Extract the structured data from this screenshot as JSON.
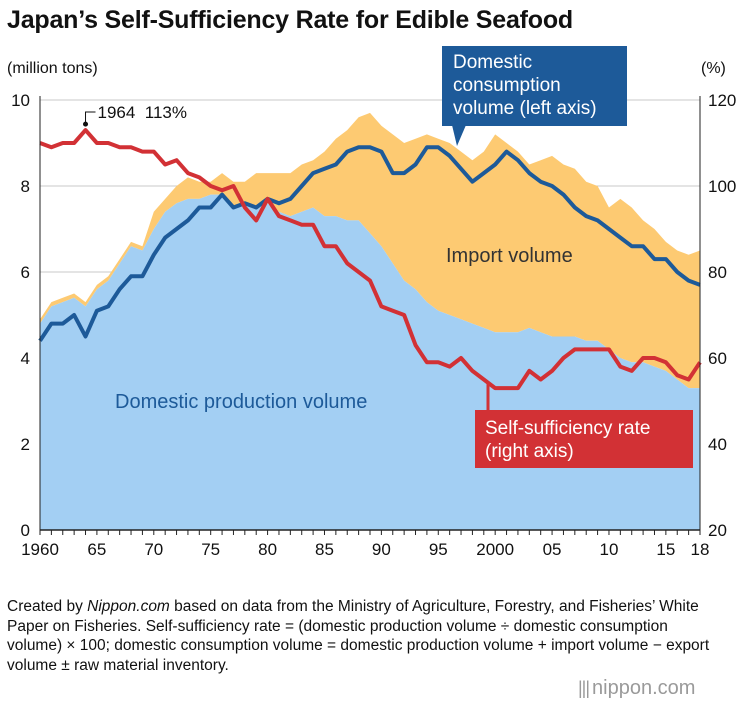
{
  "title": "Japan’s Self-Sufficiency Rate for Edible Seafood",
  "left_unit": "(million tons)",
  "right_unit": "(%)",
  "footnote": {
    "prefix": "Created by ",
    "source": "Nippon.com",
    "body": " based on data from the Ministry of Agriculture, Forestry, and Fisheries’ White Paper on Fisheries. Self-sufficiency rate = (domestic production volume ÷ domestic consumption volume) × 100; domestic consumption volume = domestic production volume + import volume − export volume ± raw material inventory."
  },
  "brand": "nippon.com",
  "colors": {
    "production": "#a3cff3",
    "imports": "#fdca72",
    "consumption": "#1d5a99",
    "rate": "#d23135",
    "grid": "#c8c8c8",
    "axis": "#222222"
  },
  "chart_data": {
    "type": "area",
    "x": [
      1960,
      1961,
      1962,
      1963,
      1964,
      1965,
      1966,
      1967,
      1968,
      1969,
      1970,
      1971,
      1972,
      1973,
      1974,
      1975,
      1976,
      1977,
      1978,
      1979,
      1980,
      1981,
      1982,
      1983,
      1984,
      1985,
      1986,
      1987,
      1988,
      1989,
      1990,
      1991,
      1992,
      1993,
      1994,
      1995,
      1996,
      1997,
      1998,
      1999,
      2000,
      2001,
      2002,
      2003,
      2004,
      2005,
      2006,
      2007,
      2008,
      2009,
      2010,
      2011,
      2012,
      2013,
      2014,
      2015,
      2016,
      2017,
      2018
    ],
    "x_tick_labels": [
      {
        "x": 1960,
        "label": "1960"
      },
      {
        "x": 1965,
        "label": "65"
      },
      {
        "x": 1970,
        "label": "70"
      },
      {
        "x": 1975,
        "label": "75"
      },
      {
        "x": 1980,
        "label": "80"
      },
      {
        "x": 1985,
        "label": "85"
      },
      {
        "x": 1990,
        "label": "90"
      },
      {
        "x": 1995,
        "label": "95"
      },
      {
        "x": 2000,
        "label": "2000"
      },
      {
        "x": 2005,
        "label": "05"
      },
      {
        "x": 2010,
        "label": "10"
      },
      {
        "x": 2015,
        "label": "15"
      },
      {
        "x": 2018,
        "label": "18"
      }
    ],
    "left_axis": {
      "label": "(million tons)",
      "range": [
        0,
        10
      ],
      "ticks": [
        0,
        2,
        4,
        6,
        8,
        10
      ]
    },
    "right_axis": {
      "label": "(%)",
      "range": [
        20,
        120
      ],
      "ticks": [
        20,
        40,
        60,
        80,
        100,
        120
      ]
    },
    "grid": true,
    "series": [
      {
        "name": "Domestic production volume",
        "type": "area",
        "axis": "left",
        "values": [
          4.8,
          5.2,
          5.3,
          5.4,
          5.2,
          5.6,
          5.8,
          6.2,
          6.6,
          6.5,
          7.0,
          7.4,
          7.6,
          7.7,
          7.7,
          7.8,
          7.8,
          7.5,
          7.6,
          7.5,
          7.6,
          7.4,
          7.3,
          7.4,
          7.5,
          7.3,
          7.3,
          7.2,
          7.2,
          6.9,
          6.6,
          6.2,
          5.8,
          5.6,
          5.3,
          5.1,
          5.0,
          4.9,
          4.8,
          4.7,
          4.6,
          4.6,
          4.6,
          4.7,
          4.6,
          4.5,
          4.5,
          4.5,
          4.4,
          4.4,
          4.2,
          4.0,
          3.9,
          3.9,
          3.8,
          3.7,
          3.5,
          3.3,
          3.3
        ]
      },
      {
        "name": "Import volume",
        "type": "area",
        "axis": "left",
        "values": [
          0.1,
          0.1,
          0.1,
          0.1,
          0.1,
          0.1,
          0.1,
          0.1,
          0.1,
          0.1,
          0.4,
          0.3,
          0.4,
          0.5,
          0.4,
          0.3,
          0.5,
          0.6,
          0.5,
          0.8,
          0.7,
          0.9,
          1.0,
          1.1,
          1.1,
          1.5,
          1.8,
          2.1,
          2.4,
          2.8,
          2.8,
          3.0,
          3.2,
          3.5,
          3.9,
          4.0,
          4.0,
          3.9,
          3.8,
          4.1,
          4.6,
          4.4,
          4.2,
          3.8,
          4.0,
          4.2,
          4.0,
          3.9,
          3.7,
          3.6,
          3.3,
          3.7,
          3.6,
          3.3,
          3.2,
          3.0,
          3.0,
          3.1,
          3.2
        ]
      },
      {
        "name": "Domestic consumption volume (left axis)",
        "type": "line",
        "axis": "left",
        "values": [
          4.4,
          4.8,
          4.8,
          5.0,
          4.5,
          5.1,
          5.2,
          5.6,
          5.9,
          5.9,
          6.4,
          6.8,
          7.0,
          7.2,
          7.5,
          7.5,
          7.8,
          7.5,
          7.6,
          7.5,
          7.7,
          7.6,
          7.7,
          8.0,
          8.3,
          8.4,
          8.5,
          8.8,
          8.9,
          8.9,
          8.8,
          8.3,
          8.3,
          8.5,
          8.9,
          8.9,
          8.7,
          8.4,
          8.1,
          8.3,
          8.5,
          8.8,
          8.6,
          8.3,
          8.1,
          8.0,
          7.8,
          7.5,
          7.3,
          7.2,
          7.0,
          6.8,
          6.6,
          6.6,
          6.3,
          6.3,
          6.0,
          5.8,
          5.7
        ]
      },
      {
        "name": "Self-sufficiency rate (right axis)",
        "type": "line",
        "axis": "right",
        "values": [
          110,
          109,
          110,
          110,
          113,
          110,
          110,
          109,
          109,
          108,
          108,
          105,
          106,
          103,
          102,
          100,
          99,
          100,
          95,
          92,
          97,
          93,
          92,
          91,
          91,
          86,
          86,
          82,
          80,
          78,
          72,
          71,
          70,
          63,
          59,
          59,
          58,
          60,
          57,
          55,
          53,
          53,
          53,
          57,
          55,
          57,
          60,
          62,
          62,
          62,
          62,
          58,
          57,
          60,
          60,
          59,
          56,
          55,
          59
        ]
      }
    ],
    "annotations": [
      {
        "x": 1964,
        "label": "1964  113%"
      }
    ],
    "callouts": {
      "consumption": [
        "Domestic",
        "consumption",
        "volume (left axis)"
      ],
      "rate": [
        "Self-sufficiency rate",
        "(right axis)"
      ]
    },
    "area_labels": {
      "production": "Domestic production volume",
      "imports": "Import volume"
    }
  }
}
